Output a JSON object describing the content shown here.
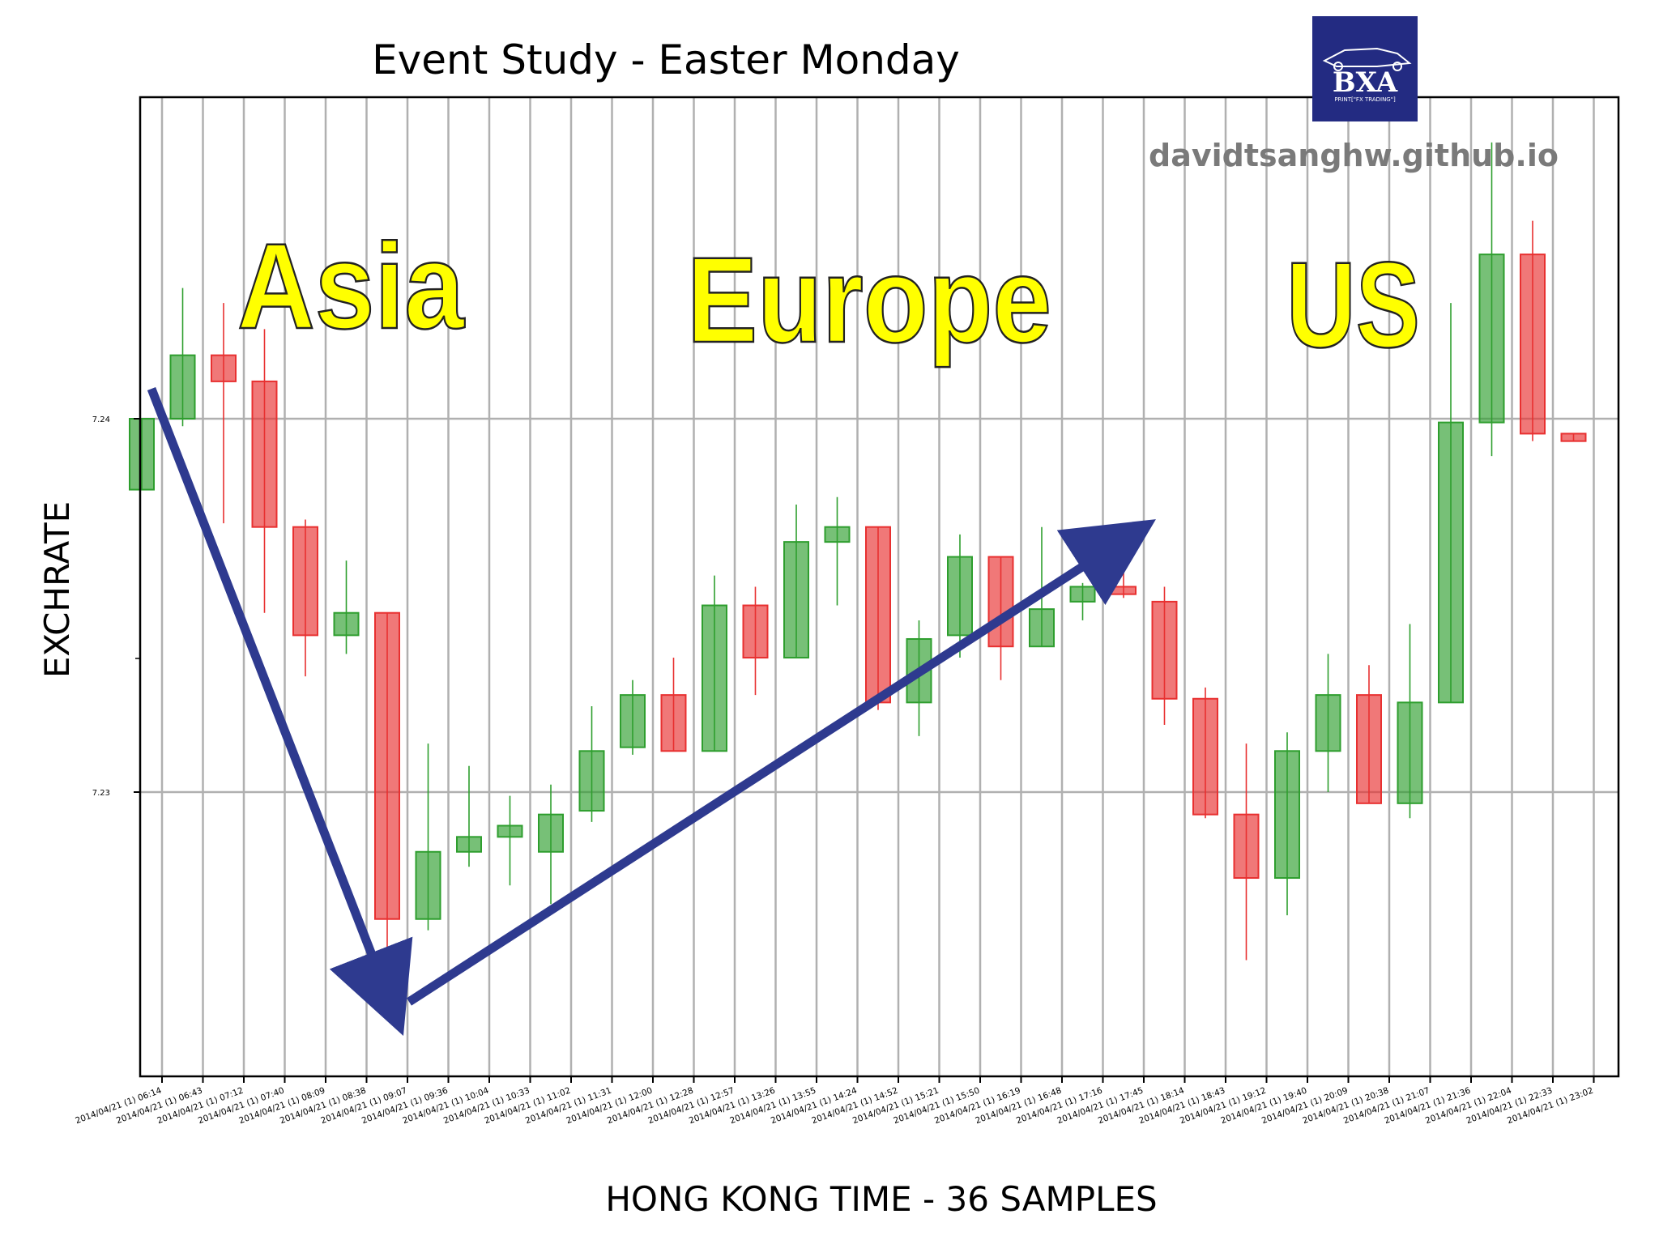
{
  "chart_data": {
    "type": "candlestick",
    "title": "Event Study - Easter Monday",
    "xlabel": "HONG KONG TIME - 36 SAMPLES",
    "ylabel": "EXCHRATE",
    "yticks": [
      "7.23",
      "7.24"
    ],
    "grid": true,
    "colors": {
      "up": "#2e9e2e",
      "down": "#e83030",
      "grid": "#b0b0b0",
      "arrow": "#2e3a8f",
      "session_text": "#ffff00"
    },
    "annotations": [
      "Asia",
      "Europe",
      "US"
    ],
    "watermark": "davidtsanghw.github.io",
    "logo": {
      "text": "BXA",
      "subtext": "PRINT[\"FX TRADING\"]"
    },
    "categories": [
      "2014/04/21 (1) 06:14",
      "2014/04/21 (1) 06:43",
      "2014/04/21 (1) 07:12",
      "2014/04/21 (1) 07:40",
      "2014/04/21 (1) 08:09",
      "2014/04/21 (1) 08:38",
      "2014/04/21 (1) 09:07",
      "2014/04/21 (1) 09:36",
      "2014/04/21 (1) 10:04",
      "2014/04/21 (1) 10:33",
      "2014/04/21 (1) 11:02",
      "2014/04/21 (1) 11:31",
      "2014/04/21 (1) 12:00",
      "2014/04/21 (1) 12:28",
      "2014/04/21 (1) 12:57",
      "2014/04/21 (1) 13:26",
      "2014/04/21 (1) 13:55",
      "2014/04/21 (1) 14:24",
      "2014/04/21 (1) 14:52",
      "2014/04/21 (1) 15:21",
      "2014/04/21 (1) 15:50",
      "2014/04/21 (1) 16:19",
      "2014/04/21 (1) 16:48",
      "2014/04/21 (1) 17:16",
      "2014/04/21 (1) 17:45",
      "2014/04/21 (1) 18:14",
      "2014/04/21 (1) 18:43",
      "2014/04/21 (1) 19:12",
      "2014/04/21 (1) 19:40",
      "2014/04/21 (1) 20:09",
      "2014/04/21 (1) 20:38",
      "2014/04/21 (1) 21:07",
      "2014/04/21 (1) 21:36",
      "2014/04/21 (1) 22:04",
      "2014/04/21 (1) 22:33",
      "2014/04/21 (1) 23:02"
    ],
    "candles": [
      {
        "o": 7.2381,
        "h": 7.24,
        "l": 7.2381,
        "c": 7.24
      },
      {
        "o": 7.24,
        "h": 7.2435,
        "l": 7.2398,
        "c": 7.2417
      },
      {
        "o": 7.2417,
        "h": 7.2431,
        "l": 7.2372,
        "c": 7.241
      },
      {
        "o": 7.241,
        "h": 7.2424,
        "l": 7.2348,
        "c": 7.2371
      },
      {
        "o": 7.2371,
        "h": 7.2373,
        "l": 7.2331,
        "c": 7.2342
      },
      {
        "o": 7.2342,
        "h": 7.2362,
        "l": 7.2337,
        "c": 7.2348
      },
      {
        "o": 7.2348,
        "h": 7.2348,
        "l": 7.2249,
        "c": 7.2266
      },
      {
        "o": 7.2266,
        "h": 7.2313,
        "l": 7.2263,
        "c": 7.2284
      },
      {
        "o": 7.2284,
        "h": 7.2307,
        "l": 7.228,
        "c": 7.2288
      },
      {
        "o": 7.2288,
        "h": 7.2299,
        "l": 7.2275,
        "c": 7.2291
      },
      {
        "o": 7.2284,
        "h": 7.2302,
        "l": 7.227,
        "c": 7.2294
      },
      {
        "o": 7.2295,
        "h": 7.2323,
        "l": 7.2292,
        "c": 7.2311
      },
      {
        "o": 7.2312,
        "h": 7.233,
        "l": 7.231,
        "c": 7.2326
      },
      {
        "o": 7.2326,
        "h": 7.2336,
        "l": 7.2311,
        "c": 7.2311
      },
      {
        "o": 7.2311,
        "h": 7.2358,
        "l": 7.2311,
        "c": 7.235
      },
      {
        "o": 7.235,
        "h": 7.2355,
        "l": 7.2326,
        "c": 7.2336
      },
      {
        "o": 7.2336,
        "h": 7.2377,
        "l": 7.2336,
        "c": 7.2367
      },
      {
        "o": 7.2367,
        "h": 7.2379,
        "l": 7.235,
        "c": 7.2371
      },
      {
        "o": 7.2371,
        "h": 7.2371,
        "l": 7.2322,
        "c": 7.2324
      },
      {
        "o": 7.2324,
        "h": 7.2346,
        "l": 7.2315,
        "c": 7.2341
      },
      {
        "o": 7.2342,
        "h": 7.2369,
        "l": 7.2336,
        "c": 7.2363
      },
      {
        "o": 7.2363,
        "h": 7.2363,
        "l": 7.233,
        "c": 7.2339
      },
      {
        "o": 7.2339,
        "h": 7.2371,
        "l": 7.2339,
        "c": 7.2349
      },
      {
        "o": 7.2351,
        "h": 7.2356,
        "l": 7.2346,
        "c": 7.2355
      },
      {
        "o": 7.2355,
        "h": 7.2368,
        "l": 7.2352,
        "c": 7.2353
      },
      {
        "o": 7.2351,
        "h": 7.2355,
        "l": 7.2318,
        "c": 7.2325
      },
      {
        "o": 7.2325,
        "h": 7.2328,
        "l": 7.2293,
        "c": 7.2294
      },
      {
        "o": 7.2294,
        "h": 7.2313,
        "l": 7.2255,
        "c": 7.2277
      },
      {
        "o": 7.2277,
        "h": 7.2316,
        "l": 7.2267,
        "c": 7.2311
      },
      {
        "o": 7.2311,
        "h": 7.2337,
        "l": 7.23,
        "c": 7.2326
      },
      {
        "o": 7.2326,
        "h": 7.2334,
        "l": 7.2297,
        "c": 7.2297
      },
      {
        "o": 7.2297,
        "h": 7.2345,
        "l": 7.2293,
        "c": 7.2324
      },
      {
        "o": 7.2324,
        "h": 7.2431,
        "l": 7.2324,
        "c": 7.2399
      },
      {
        "o": 7.2399,
        "h": 7.2474,
        "l": 7.239,
        "c": 7.2444
      },
      {
        "o": 7.2444,
        "h": 7.2453,
        "l": 7.2394,
        "c": 7.2396
      },
      {
        "o": 7.2396,
        "h": 7.2396,
        "l": 7.2394,
        "c": 7.2394
      }
    ]
  }
}
